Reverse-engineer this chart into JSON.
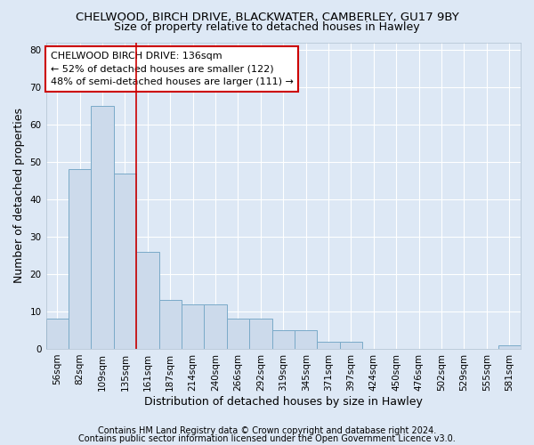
{
  "title1": "CHELWOOD, BIRCH DRIVE, BLACKWATER, CAMBERLEY, GU17 9BY",
  "title2": "Size of property relative to detached houses in Hawley",
  "xlabel": "Distribution of detached houses by size in Hawley",
  "ylabel": "Number of detached properties",
  "categories": [
    "56sqm",
    "82sqm",
    "109sqm",
    "135sqm",
    "161sqm",
    "187sqm",
    "214sqm",
    "240sqm",
    "266sqm",
    "292sqm",
    "319sqm",
    "345sqm",
    "371sqm",
    "397sqm",
    "424sqm",
    "450sqm",
    "476sqm",
    "502sqm",
    "529sqm",
    "555sqm",
    "581sqm"
  ],
  "values": [
    8,
    48,
    65,
    47,
    26,
    13,
    12,
    12,
    8,
    8,
    5,
    5,
    2,
    2,
    0,
    0,
    0,
    0,
    0,
    0,
    1
  ],
  "bar_color": "#ccdaeb",
  "bar_edge_color": "#7aaac8",
  "highlight_bar_index": 3,
  "highlight_line_color": "#cc0000",
  "annotation_text": "CHELWOOD BIRCH DRIVE: 136sqm\n← 52% of detached houses are smaller (122)\n48% of semi-detached houses are larger (111) →",
  "annotation_box_color": "#ffffff",
  "annotation_box_edge_color": "#cc0000",
  "ylim": [
    0,
    82
  ],
  "yticks": [
    0,
    10,
    20,
    30,
    40,
    50,
    60,
    70,
    80
  ],
  "footer1": "Contains HM Land Registry data © Crown copyright and database right 2024.",
  "footer2": "Contains public sector information licensed under the Open Government Licence v3.0.",
  "background_color": "#dde8f5",
  "plot_bg_color": "#dde8f5",
  "grid_color": "#ffffff",
  "title1_fontsize": 9.5,
  "title2_fontsize": 9,
  "axis_label_fontsize": 9,
  "tick_fontsize": 7.5,
  "annotation_fontsize": 8,
  "footer_fontsize": 7
}
